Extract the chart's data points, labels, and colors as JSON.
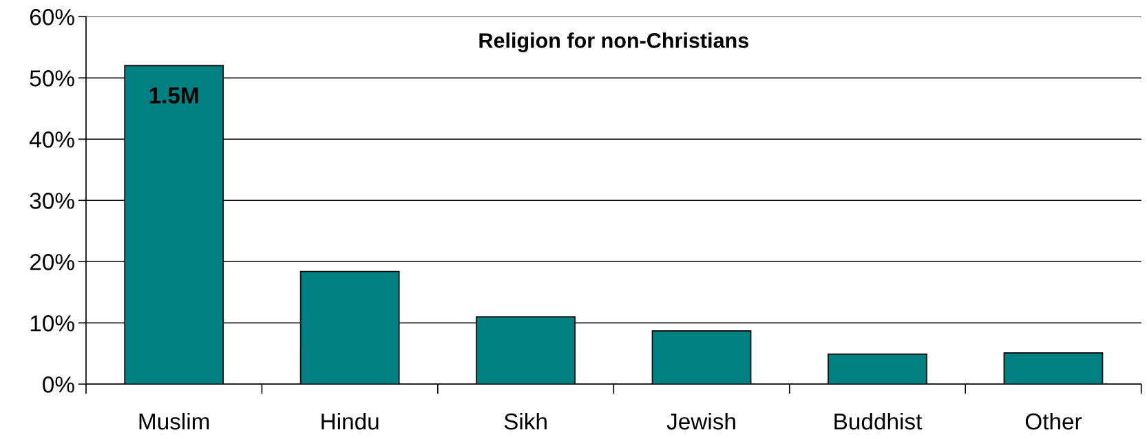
{
  "chart_data": {
    "type": "bar",
    "title": "Religion for non-Christians",
    "categories": [
      "Muslim",
      "Hindu",
      "Sikh",
      "Jewish",
      "Buddhist",
      "Other"
    ],
    "values": [
      52,
      18.4,
      11,
      8.7,
      4.9,
      5.1
    ],
    "color": "#008080",
    "ylim": [
      0,
      60
    ],
    "yticks": [
      {
        "value": 0,
        "label": "0%"
      },
      {
        "value": 10,
        "label": "10%"
      },
      {
        "value": 20,
        "label": "20%"
      },
      {
        "value": 30,
        "label": "30%"
      },
      {
        "value": 40,
        "label": "40%"
      },
      {
        "value": 50,
        "label": "50%"
      },
      {
        "value": 60,
        "label": "60%"
      }
    ],
    "grid": "y",
    "legend": false,
    "annotations": [
      {
        "text": "1.5M",
        "x": "Muslim",
        "y": 52
      }
    ]
  }
}
